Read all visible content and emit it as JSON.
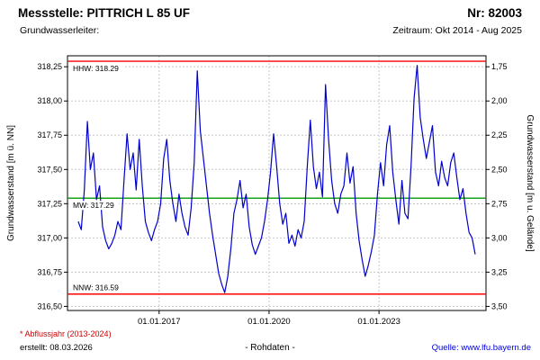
{
  "header": {
    "title": "Messstelle: PITTRICH L 85 UF",
    "station_no": "Nr: 82003",
    "aquifer_label": "Grundwasserleiter:",
    "period": "Zeitraum: Okt 2014 - Aug 2025"
  },
  "footer": {
    "footnote": "* Abflussjahr (2013-2024)",
    "created": "erstellt: 08.03.2026",
    "data_type": "- Rohdaten -",
    "source_label": "Quelle:",
    "source_link": "www.lfu.bayern.de"
  },
  "colors": {
    "series_blue": "#0000cc",
    "reference_red": "#ff0000",
    "reference_green": "#009900",
    "gridline_gray": "#c8c8c8",
    "link_blue": "#0000dd",
    "footnote_red": "#cc0000"
  },
  "chart_data": {
    "type": "line",
    "title": "",
    "xlabel": "",
    "ylabel_left": "Grundwasserstand [m ü. NN]",
    "ylabel_right": "Grundwasserstand [m u. Gelände]",
    "ylim_left": [
      316.47,
      318.33
    ],
    "ground_elevation_m": 320.0,
    "grid": true,
    "left_ticks": [
      316.5,
      316.75,
      317.0,
      317.25,
      317.5,
      317.75,
      318.0,
      318.25
    ],
    "right_ticks": [
      3.5,
      3.25,
      3.0,
      2.75,
      2.5,
      2.25,
      2.0,
      1.75
    ],
    "x_domain": [
      2014.5,
      2025.92
    ],
    "x_ticks": [
      {
        "label": "01.01.2017",
        "t": 2017.0
      },
      {
        "label": "01.01.2020",
        "t": 2020.0
      },
      {
        "label": "01.01.2023",
        "t": 2023.0
      }
    ],
    "reference_lines": [
      {
        "name": "HHW",
        "label": "HHW: 318.29",
        "value": 318.29,
        "color": "#ff0000",
        "label_position": "below"
      },
      {
        "name": "MW",
        "label": "MW: 317.29",
        "value": 317.29,
        "color": "#009900",
        "label_position": "below"
      },
      {
        "name": "NNW",
        "label": "NNW: 316.59",
        "value": 316.59,
        "color": "#ff0000",
        "label_position": "above"
      }
    ],
    "series": [
      {
        "name": "Rohdaten",
        "color": "#0000cc",
        "start": "2014-10",
        "step_months": 1,
        "values": [
          317.12,
          317.06,
          317.35,
          317.85,
          317.5,
          317.62,
          317.28,
          317.38,
          317.08,
          316.98,
          316.92,
          316.96,
          317.02,
          317.12,
          317.06,
          317.42,
          317.76,
          317.5,
          317.62,
          317.35,
          317.72,
          317.38,
          317.12,
          317.04,
          316.98,
          317.06,
          317.12,
          317.25,
          317.58,
          317.72,
          317.42,
          317.25,
          317.12,
          317.32,
          317.18,
          317.08,
          317.02,
          317.22,
          317.55,
          318.22,
          317.78,
          317.58,
          317.38,
          317.18,
          317.02,
          316.88,
          316.74,
          316.66,
          316.6,
          316.72,
          316.92,
          317.18,
          317.28,
          317.42,
          317.22,
          317.32,
          317.08,
          316.95,
          316.88,
          316.94,
          317.0,
          317.12,
          317.28,
          317.48,
          317.76,
          317.52,
          317.25,
          317.1,
          317.18,
          316.96,
          317.02,
          316.94,
          317.06,
          317.0,
          317.12,
          317.52,
          317.86,
          317.52,
          317.36,
          317.48,
          317.3,
          318.12,
          317.72,
          317.42,
          317.25,
          317.18,
          317.32,
          317.38,
          317.62,
          317.4,
          317.52,
          317.18,
          316.98,
          316.84,
          316.72,
          316.8,
          316.9,
          317.02,
          317.32,
          317.55,
          317.38,
          317.68,
          317.82,
          317.48,
          317.28,
          317.1,
          317.42,
          317.18,
          317.14,
          317.52,
          318.02,
          318.26,
          317.88,
          317.72,
          317.58,
          317.7,
          317.82,
          317.48,
          317.38,
          317.56,
          317.44,
          317.38,
          317.55,
          317.62,
          317.44,
          317.28,
          317.36,
          317.18,
          317.04,
          317.0,
          316.88
        ]
      }
    ]
  }
}
